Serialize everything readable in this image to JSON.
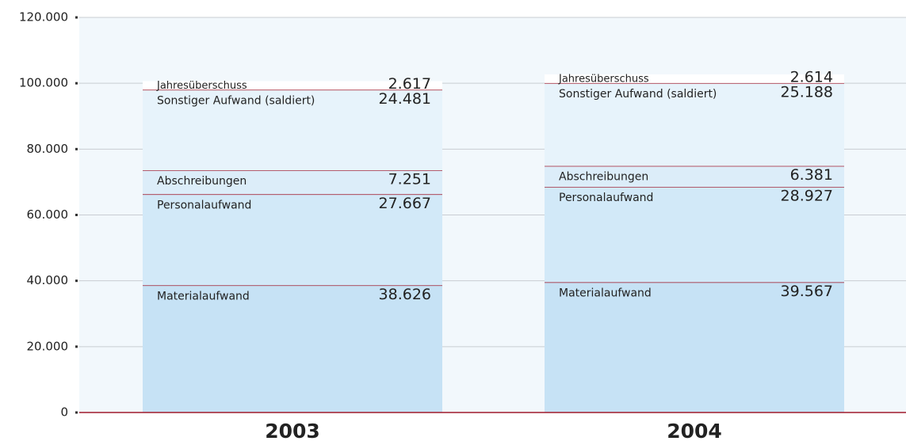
{
  "chart_data": {
    "type": "stacked_bar",
    "categories": [
      "2003",
      "2004"
    ],
    "series": [
      {
        "name": "Materialaufwand",
        "color": "#c6e2f5",
        "values": [
          38626,
          39567
        ],
        "value_labels": [
          "38.626",
          "39.567"
        ]
      },
      {
        "name": "Personalaufwand",
        "color": "#d2e9f8",
        "values": [
          27667,
          28927
        ],
        "value_labels": [
          "27.667",
          "28.927"
        ]
      },
      {
        "name": "Abschreibungen",
        "color": "#dcedf9",
        "values": [
          7251,
          6381
        ],
        "value_labels": [
          "7.251",
          "6.381"
        ]
      },
      {
        "name": "Sonstiger Aufwand (saldiert)",
        "color": "#e7f3fb",
        "values": [
          24481,
          25188
        ],
        "value_labels": [
          "24.481",
          "25.188"
        ]
      },
      {
        "name": "Jahresüberschuss",
        "color": "#ffffff",
        "values": [
          2617,
          2614
        ],
        "value_labels": [
          "2.617",
          "2.614"
        ]
      }
    ],
    "ylim": [
      0,
      120000
    ],
    "yticks": [
      0,
      {
        "value": 20000,
        "label": "20.000"
      },
      {
        "value": 40000,
        "label": "40.000"
      },
      {
        "value": 60000,
        "label": "60.000"
      },
      {
        "value": 80000,
        "label": "80.000"
      },
      {
        "value": 100000,
        "label": "100.000"
      },
      {
        "value": 120000,
        "label": "120.000"
      }
    ],
    "grid": true
  }
}
